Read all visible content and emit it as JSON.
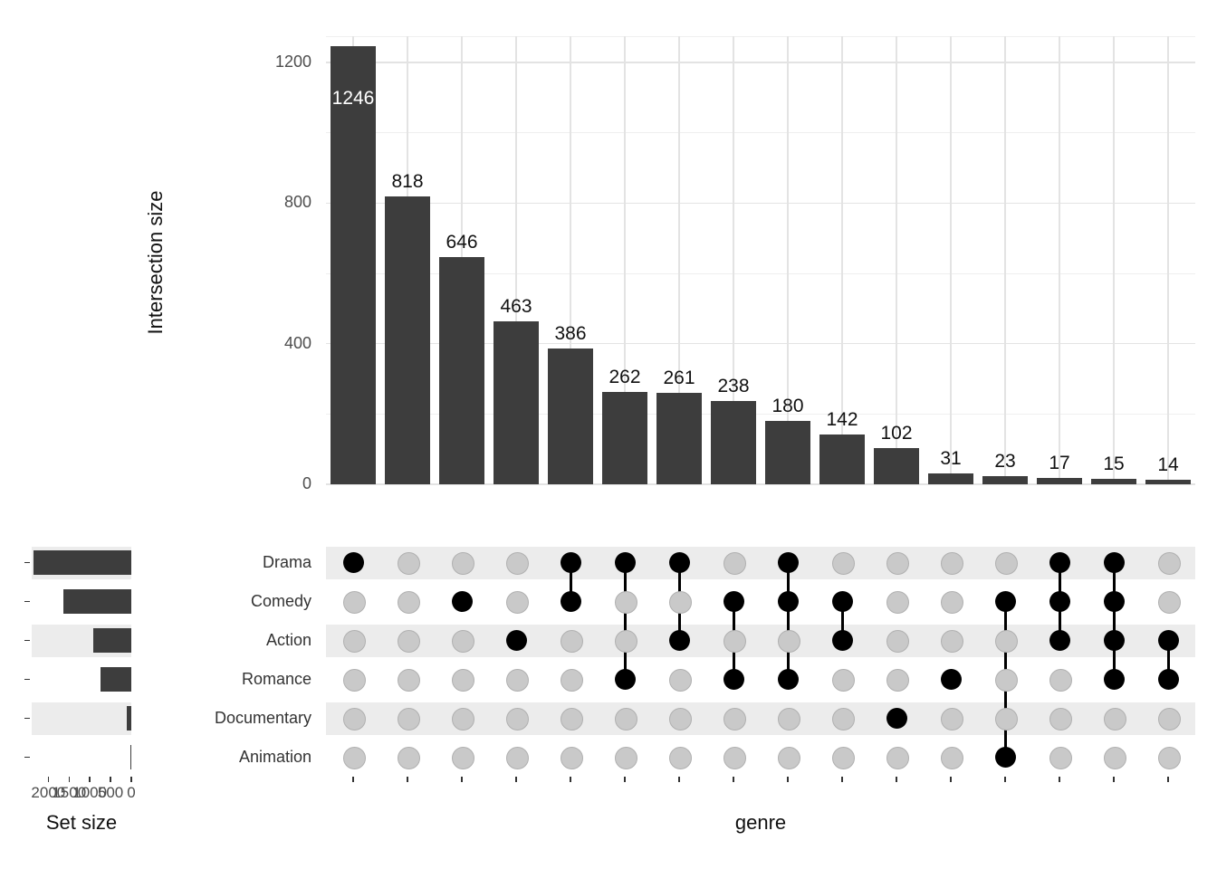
{
  "chart_data": {
    "type": "upset",
    "xlabel": "genre",
    "intersection_bars": {
      "ylabel": "Intersection size",
      "yticks": [
        0,
        400,
        800,
        1200
      ],
      "ylim": [
        0,
        1275
      ],
      "values": [
        1246,
        818,
        646,
        463,
        386,
        262,
        261,
        238,
        180,
        142,
        102,
        31,
        23,
        17,
        15,
        14
      ]
    },
    "sets": [
      "Drama",
      "Comedy",
      "Action",
      "Romance",
      "Documentary",
      "Animation"
    ],
    "combinations": [
      {
        "value": 1246,
        "members": [
          "Drama"
        ]
      },
      {
        "value": 818,
        "members": []
      },
      {
        "value": 646,
        "members": [
          "Comedy"
        ]
      },
      {
        "value": 463,
        "members": [
          "Action"
        ]
      },
      {
        "value": 386,
        "members": [
          "Drama",
          "Comedy"
        ]
      },
      {
        "value": 262,
        "members": [
          "Drama",
          "Romance"
        ]
      },
      {
        "value": 261,
        "members": [
          "Drama",
          "Action"
        ]
      },
      {
        "value": 238,
        "members": [
          "Comedy",
          "Romance"
        ]
      },
      {
        "value": 180,
        "members": [
          "Drama",
          "Comedy",
          "Romance"
        ]
      },
      {
        "value": 142,
        "members": [
          "Comedy",
          "Action"
        ]
      },
      {
        "value": 102,
        "members": [
          "Documentary"
        ]
      },
      {
        "value": 31,
        "members": [
          "Romance"
        ]
      },
      {
        "value": 23,
        "members": [
          "Comedy",
          "Animation"
        ]
      },
      {
        "value": 17,
        "members": [
          "Drama",
          "Comedy",
          "Action"
        ]
      },
      {
        "value": 15,
        "members": [
          "Drama",
          "Comedy",
          "Action",
          "Romance"
        ]
      },
      {
        "value": 14,
        "members": [
          "Action",
          "Romance"
        ]
      }
    ],
    "set_sizes": {
      "label": "Set size",
      "xticks": [
        2000,
        1500,
        1000,
        500,
        0
      ],
      "xlim": [
        2400,
        0
      ],
      "values": [
        2367,
        1647,
        912,
        740,
        102,
        23
      ]
    },
    "colors": {
      "bar": "#3d3d3d",
      "dot_active": "#000000",
      "dot_inactive": "#c9c9c9",
      "dot_border": "#b0b0b0",
      "stripe": "#ececec",
      "grid_major": "#e3e3e3",
      "grid_minor": "#efefef",
      "axis_text": "#4d4d4d",
      "tick": "#333333"
    }
  }
}
